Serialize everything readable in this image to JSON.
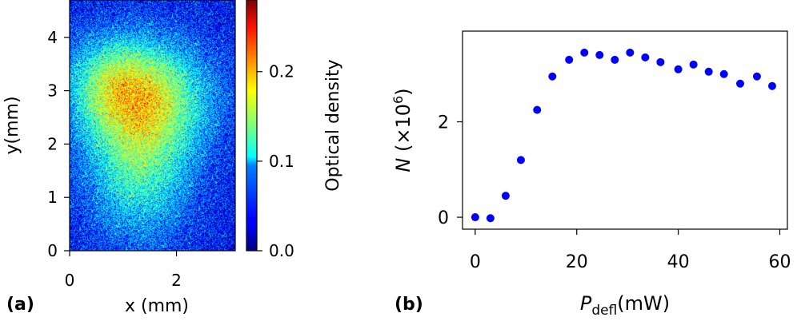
{
  "chart_data": [
    {
      "panel": "(a)",
      "type": "heatmap",
      "xlabel": "x (mm)",
      "ylabel": "y(mm)",
      "xlim": [
        0,
        3.1
      ],
      "ylim": [
        0,
        4.7
      ],
      "xticks": [
        0,
        2
      ],
      "yticks": [
        0,
        1,
        2,
        3,
        4
      ],
      "colorbar": {
        "label": "Optical density",
        "range": [
          0.0,
          0.28
        ],
        "ticks": [
          0.0,
          0.1,
          0.2
        ],
        "tick_labels": [
          "0.0",
          "0.1",
          "0.2"
        ],
        "colormap": "jet"
      },
      "cloud_blobs": [
        {
          "cx": 1.45,
          "cy": 2.9,
          "sx": 0.85,
          "sy": 0.75,
          "amp": 0.11
        },
        {
          "cx": 1.3,
          "cy": 1.5,
          "sx": 0.7,
          "sy": 0.95,
          "amp": 0.08
        },
        {
          "cx": 0.7,
          "cy": 3.2,
          "sx": 0.6,
          "sy": 0.6,
          "amp": 0.05
        }
      ],
      "background_level": 0.035
    },
    {
      "panel": "(b)",
      "type": "scatter",
      "xlabel_main": "P",
      "xlabel_sub": "defl",
      "xlabel_unit": "(mW)",
      "ylabel_main": "N",
      "ylabel_unit_open": "(×10",
      "ylabel_exp": "6",
      "ylabel_unit_close": ")",
      "xlim": [
        -2.5,
        61.5
      ],
      "ylim": [
        -0.25,
        3.9
      ],
      "xticks": [
        0,
        20,
        40,
        60
      ],
      "yticks": [
        0,
        2
      ],
      "marker_color": "#0000ff",
      "x": [
        0,
        3,
        6,
        9,
        12.2,
        15.2,
        18.5,
        21.5,
        24.5,
        27.5,
        30.5,
        33.5,
        36.5,
        40,
        43,
        46,
        49,
        52.2,
        55.5,
        58.5
      ],
      "y": [
        0.0,
        -0.02,
        0.45,
        1.2,
        2.25,
        2.95,
        3.3,
        3.45,
        3.4,
        3.3,
        3.45,
        3.35,
        3.25,
        3.1,
        3.2,
        3.05,
        3.0,
        2.8,
        2.95,
        2.75
      ]
    }
  ],
  "labels": {
    "panel_a": "(a)",
    "panel_b": "(b)"
  }
}
